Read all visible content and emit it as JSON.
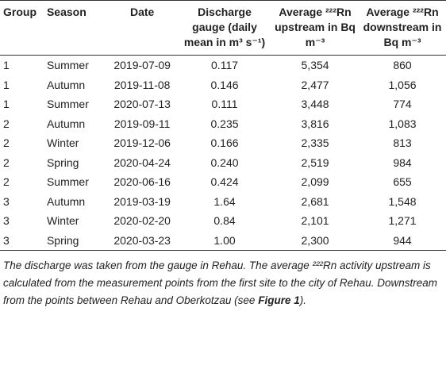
{
  "table": {
    "header": [
      "Group",
      "Season",
      "Date",
      "Discharge gauge (daily mean in m³ s⁻¹)",
      "Average ²²²Rn upstream in Bq m⁻³",
      "Average ²²²Rn downstream in Bq m⁻³"
    ],
    "rows": [
      [
        "1",
        "Summer",
        "2019-07-09",
        "0.117",
        "5,354",
        "860"
      ],
      [
        "1",
        "Autumn",
        "2019-11-08",
        "0.146",
        "2,477",
        "1,056"
      ],
      [
        "1",
        "Summer",
        "2020-07-13",
        "0.111",
        "3,448",
        "774"
      ],
      [
        "2",
        "Autumn",
        "2019-09-11",
        "0.235",
        "3,816",
        "1,083"
      ],
      [
        "2",
        "Winter",
        "2019-12-06",
        "0.166",
        "2,335",
        "813"
      ],
      [
        "2",
        "Spring",
        "2020-04-24",
        "0.240",
        "2,519",
        "984"
      ],
      [
        "2",
        "Summer",
        "2020-06-16",
        "0.424",
        "2,099",
        "655"
      ],
      [
        "3",
        "Autumn",
        "2019-03-19",
        "1.64",
        "2,681",
        "1,548"
      ],
      [
        "3",
        "Winter",
        "2020-02-20",
        "0.84",
        "2,101",
        "1,271"
      ],
      [
        "3",
        "Spring",
        "2020-03-23",
        "1.00",
        "2,300",
        "944"
      ]
    ]
  },
  "footnote": [
    "The discharge was taken from the gauge in Rehau. The average ²²²Rn activity upstream is calculated from the measurement points from the first site to the city of Rehau. Downstream from the points between Rehau and Oberkotzau (see ",
    "Figure 1",
    ")."
  ]
}
